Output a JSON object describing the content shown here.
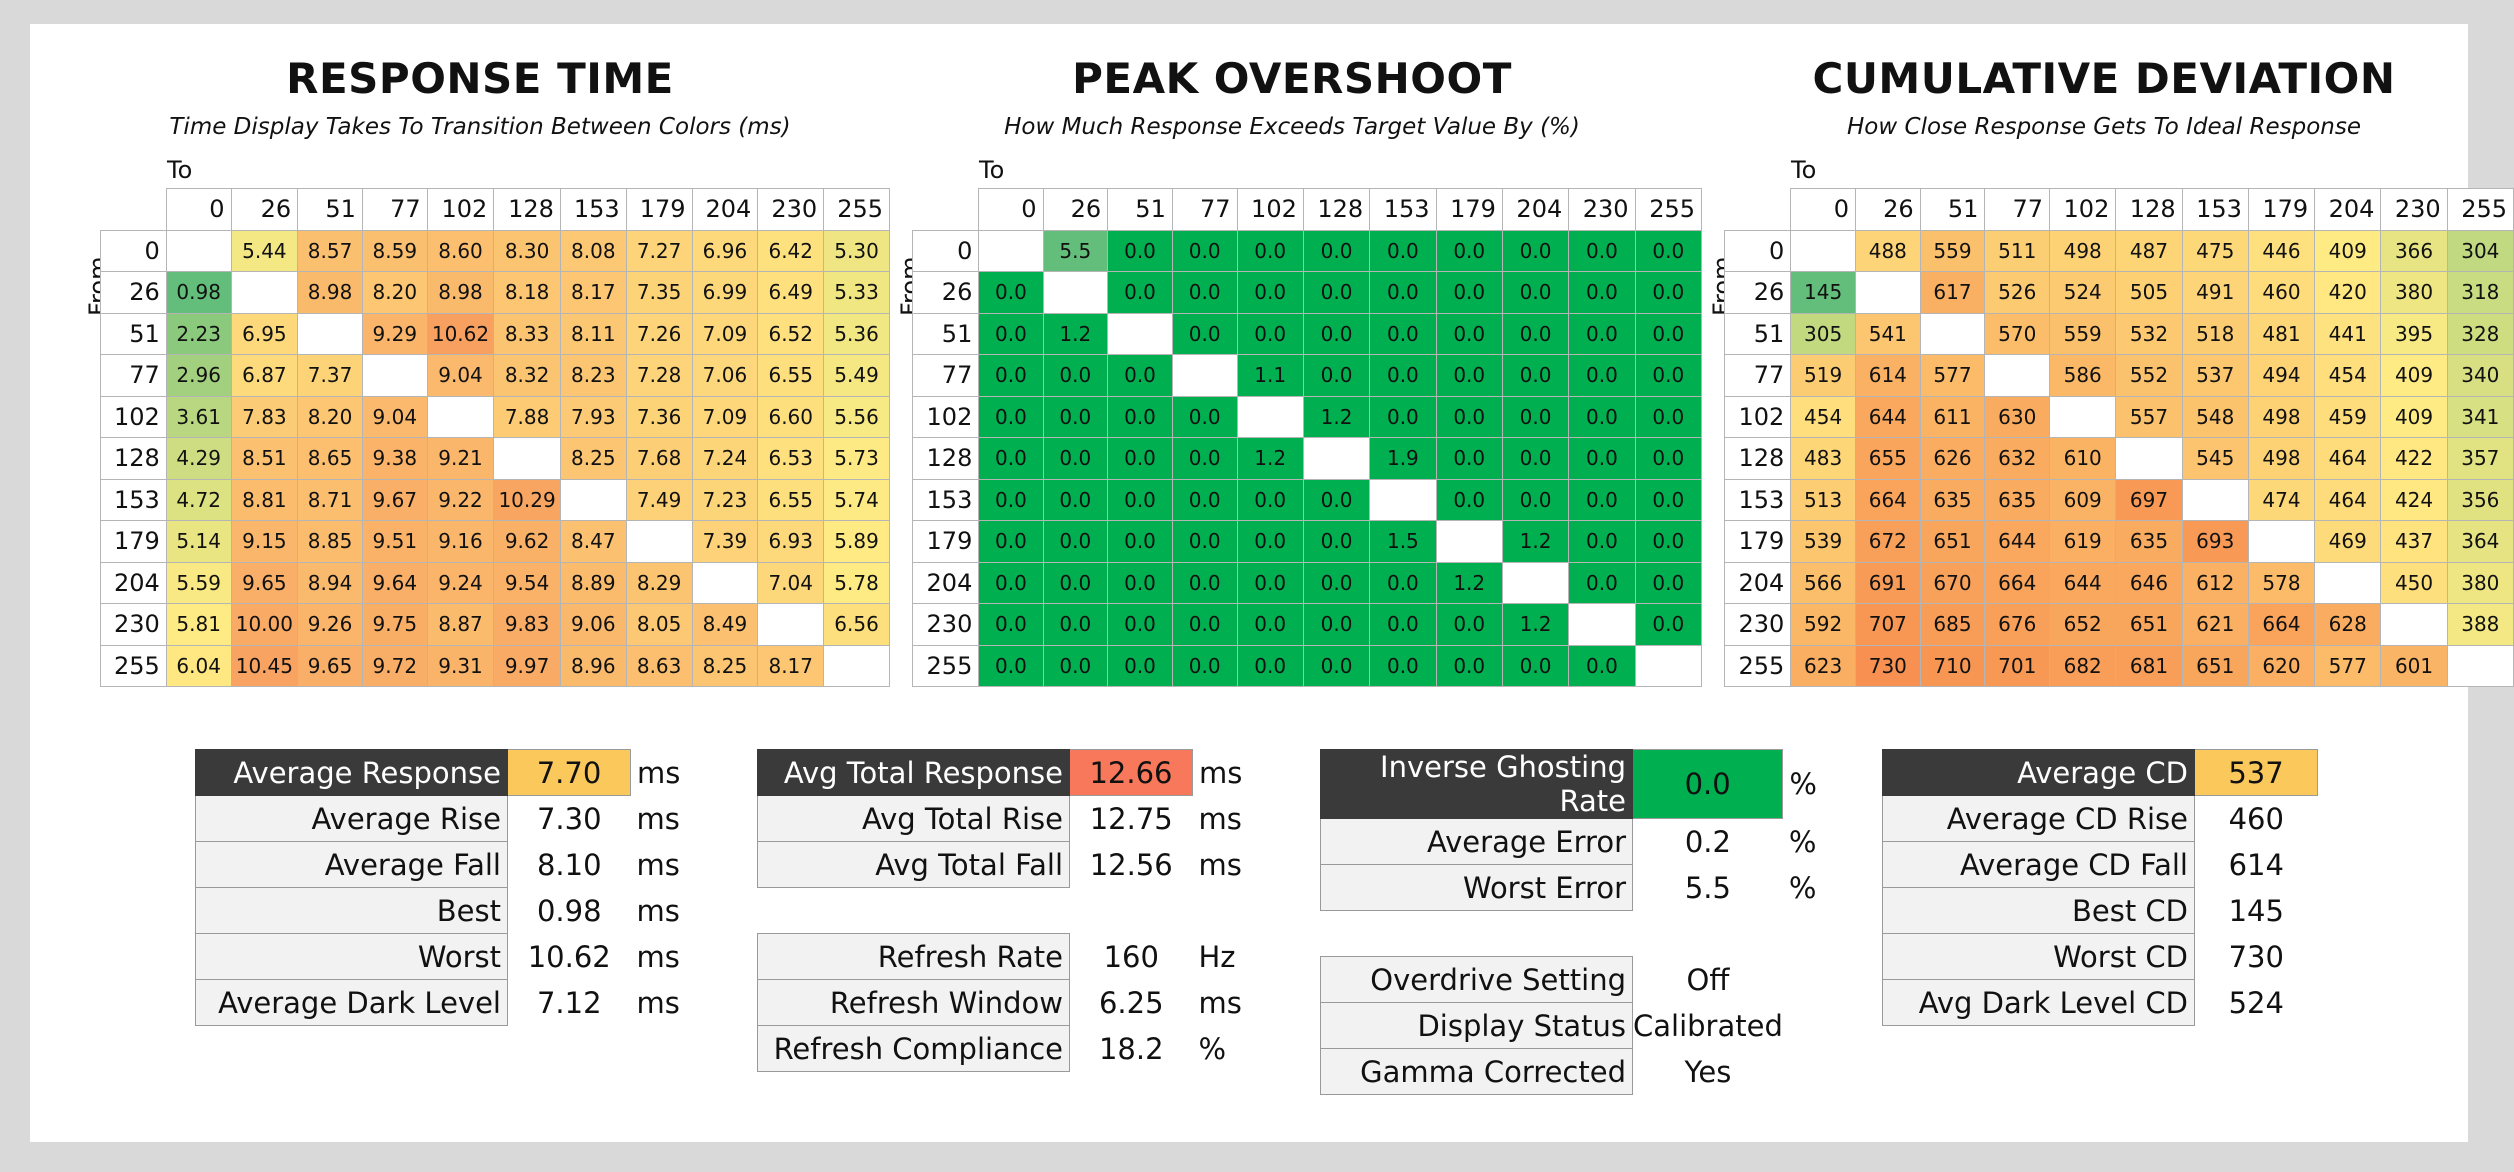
{
  "chart_data": [
    {
      "type": "heatmap",
      "title": "RESPONSE TIME",
      "subtitle": "Time Display Takes To Transition Between Colors (ms)",
      "x_axis_label": "To",
      "y_axis_label": "From",
      "levels": [
        "0",
        "26",
        "51",
        "77",
        "102",
        "128",
        "153",
        "179",
        "204",
        "230",
        "255"
      ],
      "matrix": [
        [
          null,
          "5.44",
          "8.57",
          "8.59",
          "8.60",
          "8.30",
          "8.08",
          "7.27",
          "6.96",
          "6.42",
          "5.30"
        ],
        [
          "0.98",
          null,
          "8.98",
          "8.20",
          "8.98",
          "8.18",
          "8.17",
          "7.35",
          "6.99",
          "6.49",
          "5.33"
        ],
        [
          "2.23",
          "6.95",
          null,
          "9.29",
          "10.62",
          "8.33",
          "8.11",
          "7.26",
          "7.09",
          "6.52",
          "5.36"
        ],
        [
          "2.96",
          "6.87",
          "7.37",
          null,
          "9.04",
          "8.32",
          "8.23",
          "7.28",
          "7.06",
          "6.55",
          "5.49"
        ],
        [
          "3.61",
          "7.83",
          "8.20",
          "9.04",
          null,
          "7.88",
          "7.93",
          "7.36",
          "7.09",
          "6.60",
          "5.56"
        ],
        [
          "4.29",
          "8.51",
          "8.65",
          "9.38",
          "9.21",
          null,
          "8.25",
          "7.68",
          "7.24",
          "6.53",
          "5.73"
        ],
        [
          "4.72",
          "8.81",
          "8.71",
          "9.67",
          "9.22",
          "10.29",
          null,
          "7.49",
          "7.23",
          "6.55",
          "5.74"
        ],
        [
          "5.14",
          "9.15",
          "8.85",
          "9.51",
          "9.16",
          "9.62",
          "8.47",
          null,
          "7.39",
          "6.93",
          "5.89"
        ],
        [
          "5.59",
          "9.65",
          "8.94",
          "9.64",
          "9.24",
          "9.54",
          "8.89",
          "8.29",
          null,
          "7.04",
          "5.78"
        ],
        [
          "5.81",
          "10.00",
          "9.26",
          "9.75",
          "8.87",
          "9.83",
          "9.06",
          "8.05",
          "8.49",
          null,
          "6.56"
        ],
        [
          "6.04",
          "10.45",
          "9.65",
          "9.72",
          "9.31",
          "9.97",
          "8.96",
          "8.63",
          "8.25",
          "8.17",
          null
        ]
      ]
    },
    {
      "type": "heatmap",
      "title": "PEAK OVERSHOOT",
      "subtitle": "How Much Response Exceeds Target Value By (%)",
      "x_axis_label": "To",
      "y_axis_label": "From",
      "levels": [
        "0",
        "26",
        "51",
        "77",
        "102",
        "128",
        "153",
        "179",
        "204",
        "230",
        "255"
      ],
      "matrix": [
        [
          null,
          "5.5",
          "0.0",
          "0.0",
          "0.0",
          "0.0",
          "0.0",
          "0.0",
          "0.0",
          "0.0",
          "0.0"
        ],
        [
          "0.0",
          null,
          "0.0",
          "0.0",
          "0.0",
          "0.0",
          "0.0",
          "0.0",
          "0.0",
          "0.0",
          "0.0"
        ],
        [
          "0.0",
          "1.2",
          null,
          "0.0",
          "0.0",
          "0.0",
          "0.0",
          "0.0",
          "0.0",
          "0.0",
          "0.0"
        ],
        [
          "0.0",
          "0.0",
          "0.0",
          null,
          "1.1",
          "0.0",
          "0.0",
          "0.0",
          "0.0",
          "0.0",
          "0.0"
        ],
        [
          "0.0",
          "0.0",
          "0.0",
          "0.0",
          null,
          "1.2",
          "0.0",
          "0.0",
          "0.0",
          "0.0",
          "0.0"
        ],
        [
          "0.0",
          "0.0",
          "0.0",
          "0.0",
          "1.2",
          null,
          "1.9",
          "0.0",
          "0.0",
          "0.0",
          "0.0"
        ],
        [
          "0.0",
          "0.0",
          "0.0",
          "0.0",
          "0.0",
          "0.0",
          null,
          "0.0",
          "0.0",
          "0.0",
          "0.0"
        ],
        [
          "0.0",
          "0.0",
          "0.0",
          "0.0",
          "0.0",
          "0.0",
          "1.5",
          null,
          "1.2",
          "0.0",
          "0.0"
        ],
        [
          "0.0",
          "0.0",
          "0.0",
          "0.0",
          "0.0",
          "0.0",
          "0.0",
          "1.2",
          null,
          "0.0",
          "0.0"
        ],
        [
          "0.0",
          "0.0",
          "0.0",
          "0.0",
          "0.0",
          "0.0",
          "0.0",
          "0.0",
          "1.2",
          null,
          "0.0"
        ],
        [
          "0.0",
          "0.0",
          "0.0",
          "0.0",
          "0.0",
          "0.0",
          "0.0",
          "0.0",
          "0.0",
          "0.0",
          null
        ]
      ]
    },
    {
      "type": "heatmap",
      "title": "CUMULATIVE DEVIATION",
      "subtitle": "How Close Response Gets To Ideal Response",
      "x_axis_label": "To",
      "y_axis_label": "From",
      "levels": [
        "0",
        "26",
        "51",
        "77",
        "102",
        "128",
        "153",
        "179",
        "204",
        "230",
        "255"
      ],
      "matrix": [
        [
          null,
          "488",
          "559",
          "511",
          "498",
          "487",
          "475",
          "446",
          "409",
          "366",
          "304"
        ],
        [
          "145",
          null,
          "617",
          "526",
          "524",
          "505",
          "491",
          "460",
          "420",
          "380",
          "318"
        ],
        [
          "305",
          "541",
          null,
          "570",
          "559",
          "532",
          "518",
          "481",
          "441",
          "395",
          "328"
        ],
        [
          "519",
          "614",
          "577",
          null,
          "586",
          "552",
          "537",
          "494",
          "454",
          "409",
          "340"
        ],
        [
          "454",
          "644",
          "611",
          "630",
          null,
          "557",
          "548",
          "498",
          "459",
          "409",
          "341"
        ],
        [
          "483",
          "655",
          "626",
          "632",
          "610",
          null,
          "545",
          "498",
          "464",
          "422",
          "357"
        ],
        [
          "513",
          "664",
          "635",
          "635",
          "609",
          "697",
          null,
          "474",
          "464",
          "424",
          "356"
        ],
        [
          "539",
          "672",
          "651",
          "644",
          "619",
          "635",
          "693",
          null,
          "469",
          "437",
          "364"
        ],
        [
          "566",
          "691",
          "670",
          "664",
          "644",
          "646",
          "612",
          "578",
          null,
          "450",
          "380"
        ],
        [
          "592",
          "707",
          "685",
          "676",
          "652",
          "651",
          "621",
          "664",
          "628",
          null,
          "388"
        ],
        [
          "623",
          "730",
          "710",
          "701",
          "682",
          "681",
          "651",
          "620",
          "577",
          "601",
          null
        ]
      ]
    }
  ],
  "stats": {
    "response": [
      {
        "label": "Average Response",
        "value": "7.70",
        "unit": "ms",
        "highlight": "#fbc85c"
      },
      {
        "label": "Average Rise",
        "value": "7.30",
        "unit": "ms"
      },
      {
        "label": "Average Fall",
        "value": "8.10",
        "unit": "ms"
      },
      {
        "label": "Best",
        "value": "0.98",
        "unit": "ms"
      },
      {
        "label": "Worst",
        "value": "10.62",
        "unit": "ms"
      },
      {
        "label": "Average Dark Level",
        "value": "7.12",
        "unit": "ms"
      }
    ],
    "total": [
      {
        "label": "Avg Total Response",
        "value": "12.66",
        "unit": "ms",
        "highlight": "#f8785b"
      },
      {
        "label": "Avg Total Rise",
        "value": "12.75",
        "unit": "ms"
      },
      {
        "label": "Avg Total Fall",
        "value": "12.56",
        "unit": "ms"
      },
      {
        "label": "",
        "value": "",
        "unit": ""
      },
      {
        "label": "Refresh Rate",
        "value": "160",
        "unit": "Hz"
      },
      {
        "label": "Refresh Window",
        "value": "6.25",
        "unit": "ms"
      },
      {
        "label": "Refresh Compliance",
        "value": "18.2",
        "unit": "%"
      }
    ],
    "overshoot": [
      {
        "label": "Inverse Ghosting Rate",
        "value": "0.0",
        "unit": "%",
        "highlight": "#00b050"
      },
      {
        "label": "Average Error",
        "value": "0.2",
        "unit": "%"
      },
      {
        "label": "Worst Error",
        "value": "5.5",
        "unit": "%"
      },
      {
        "label": "",
        "value": "",
        "unit": ""
      },
      {
        "label": "Overdrive Setting",
        "value": "Off",
        "unit": ""
      },
      {
        "label": "Display Status",
        "value": "Calibrated",
        "unit": ""
      },
      {
        "label": "Gamma Corrected",
        "value": "Yes",
        "unit": ""
      }
    ],
    "cd": [
      {
        "label": "Average CD",
        "value": "537",
        "unit": "",
        "highlight": "#fbc85c"
      },
      {
        "label": "Average CD Rise",
        "value": "460",
        "unit": ""
      },
      {
        "label": "Average CD Fall",
        "value": "614",
        "unit": ""
      },
      {
        "label": "Best CD",
        "value": "145",
        "unit": ""
      },
      {
        "label": "Worst CD",
        "value": "730",
        "unit": ""
      },
      {
        "label": "Avg Dark Level CD",
        "value": "524",
        "unit": ""
      }
    ]
  },
  "colors": {
    "scale_good": "#63be7b",
    "scale_mid": "#ffeb84",
    "scale_bad": "#f8696b",
    "overshoot_green": "#00b050",
    "overshoot_light": "#63be7b"
  }
}
